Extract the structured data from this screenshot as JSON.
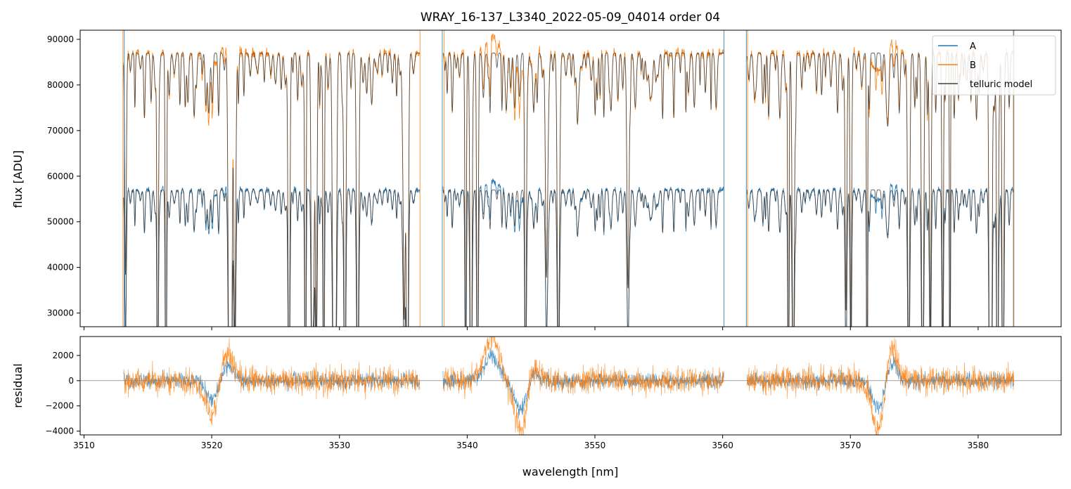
{
  "chart_data": [
    {
      "type": "line",
      "title": "WRAY_16-137_L3340_2022-05-09_04014  order 04",
      "xlabel": "",
      "ylabel": "flux [ADU]",
      "xlim": [
        3509.7,
        3586.5
      ],
      "ylim": [
        27000,
        92000
      ],
      "x_ticks": [
        3510,
        3520,
        3530,
        3540,
        3550,
        3560,
        3570,
        3580
      ],
      "y_ticks": [
        30000,
        40000,
        50000,
        60000,
        70000,
        80000,
        90000
      ],
      "y_tick_labels": [
        "30000",
        "40000",
        "50000",
        "60000",
        "70000",
        "80000",
        "90000"
      ],
      "segments_nm": [
        [
          3513.1,
          3536.3
        ],
        [
          3538.1,
          3560.1
        ],
        [
          3561.9,
          3582.8
        ]
      ],
      "continuum_A": 57000,
      "continuum_B": 87000,
      "legend": {
        "position": "top-right",
        "entries": [
          "A",
          "B",
          "telluric model"
        ]
      },
      "series": [
        {
          "name": "A",
          "color": "#1f77b4"
        },
        {
          "name": "B",
          "color": "#ff7f0e"
        },
        {
          "name": "telluric model",
          "color": "#404040"
        }
      ]
    },
    {
      "type": "line",
      "title": "",
      "xlabel": "wavelength [nm]",
      "ylabel": "residual",
      "xlim": [
        3509.7,
        3586.5
      ],
      "ylim": [
        -4300,
        3500
      ],
      "x_ticks": [
        3510,
        3520,
        3530,
        3540,
        3550,
        3560,
        3570,
        3580
      ],
      "x_tick_labels": [
        "3510",
        "3520",
        "3530",
        "3540",
        "3550",
        "3560",
        "3570",
        "3580"
      ],
      "y_ticks": [
        -4000,
        -2000,
        0,
        2000
      ],
      "y_tick_labels": [
        "−4000",
        "−2000",
        "0",
        "2000"
      ],
      "zero_line": true,
      "series": [
        {
          "name": "A",
          "color": "#1f77b4"
        },
        {
          "name": "B",
          "color": "#ff7f0e"
        }
      ]
    }
  ]
}
